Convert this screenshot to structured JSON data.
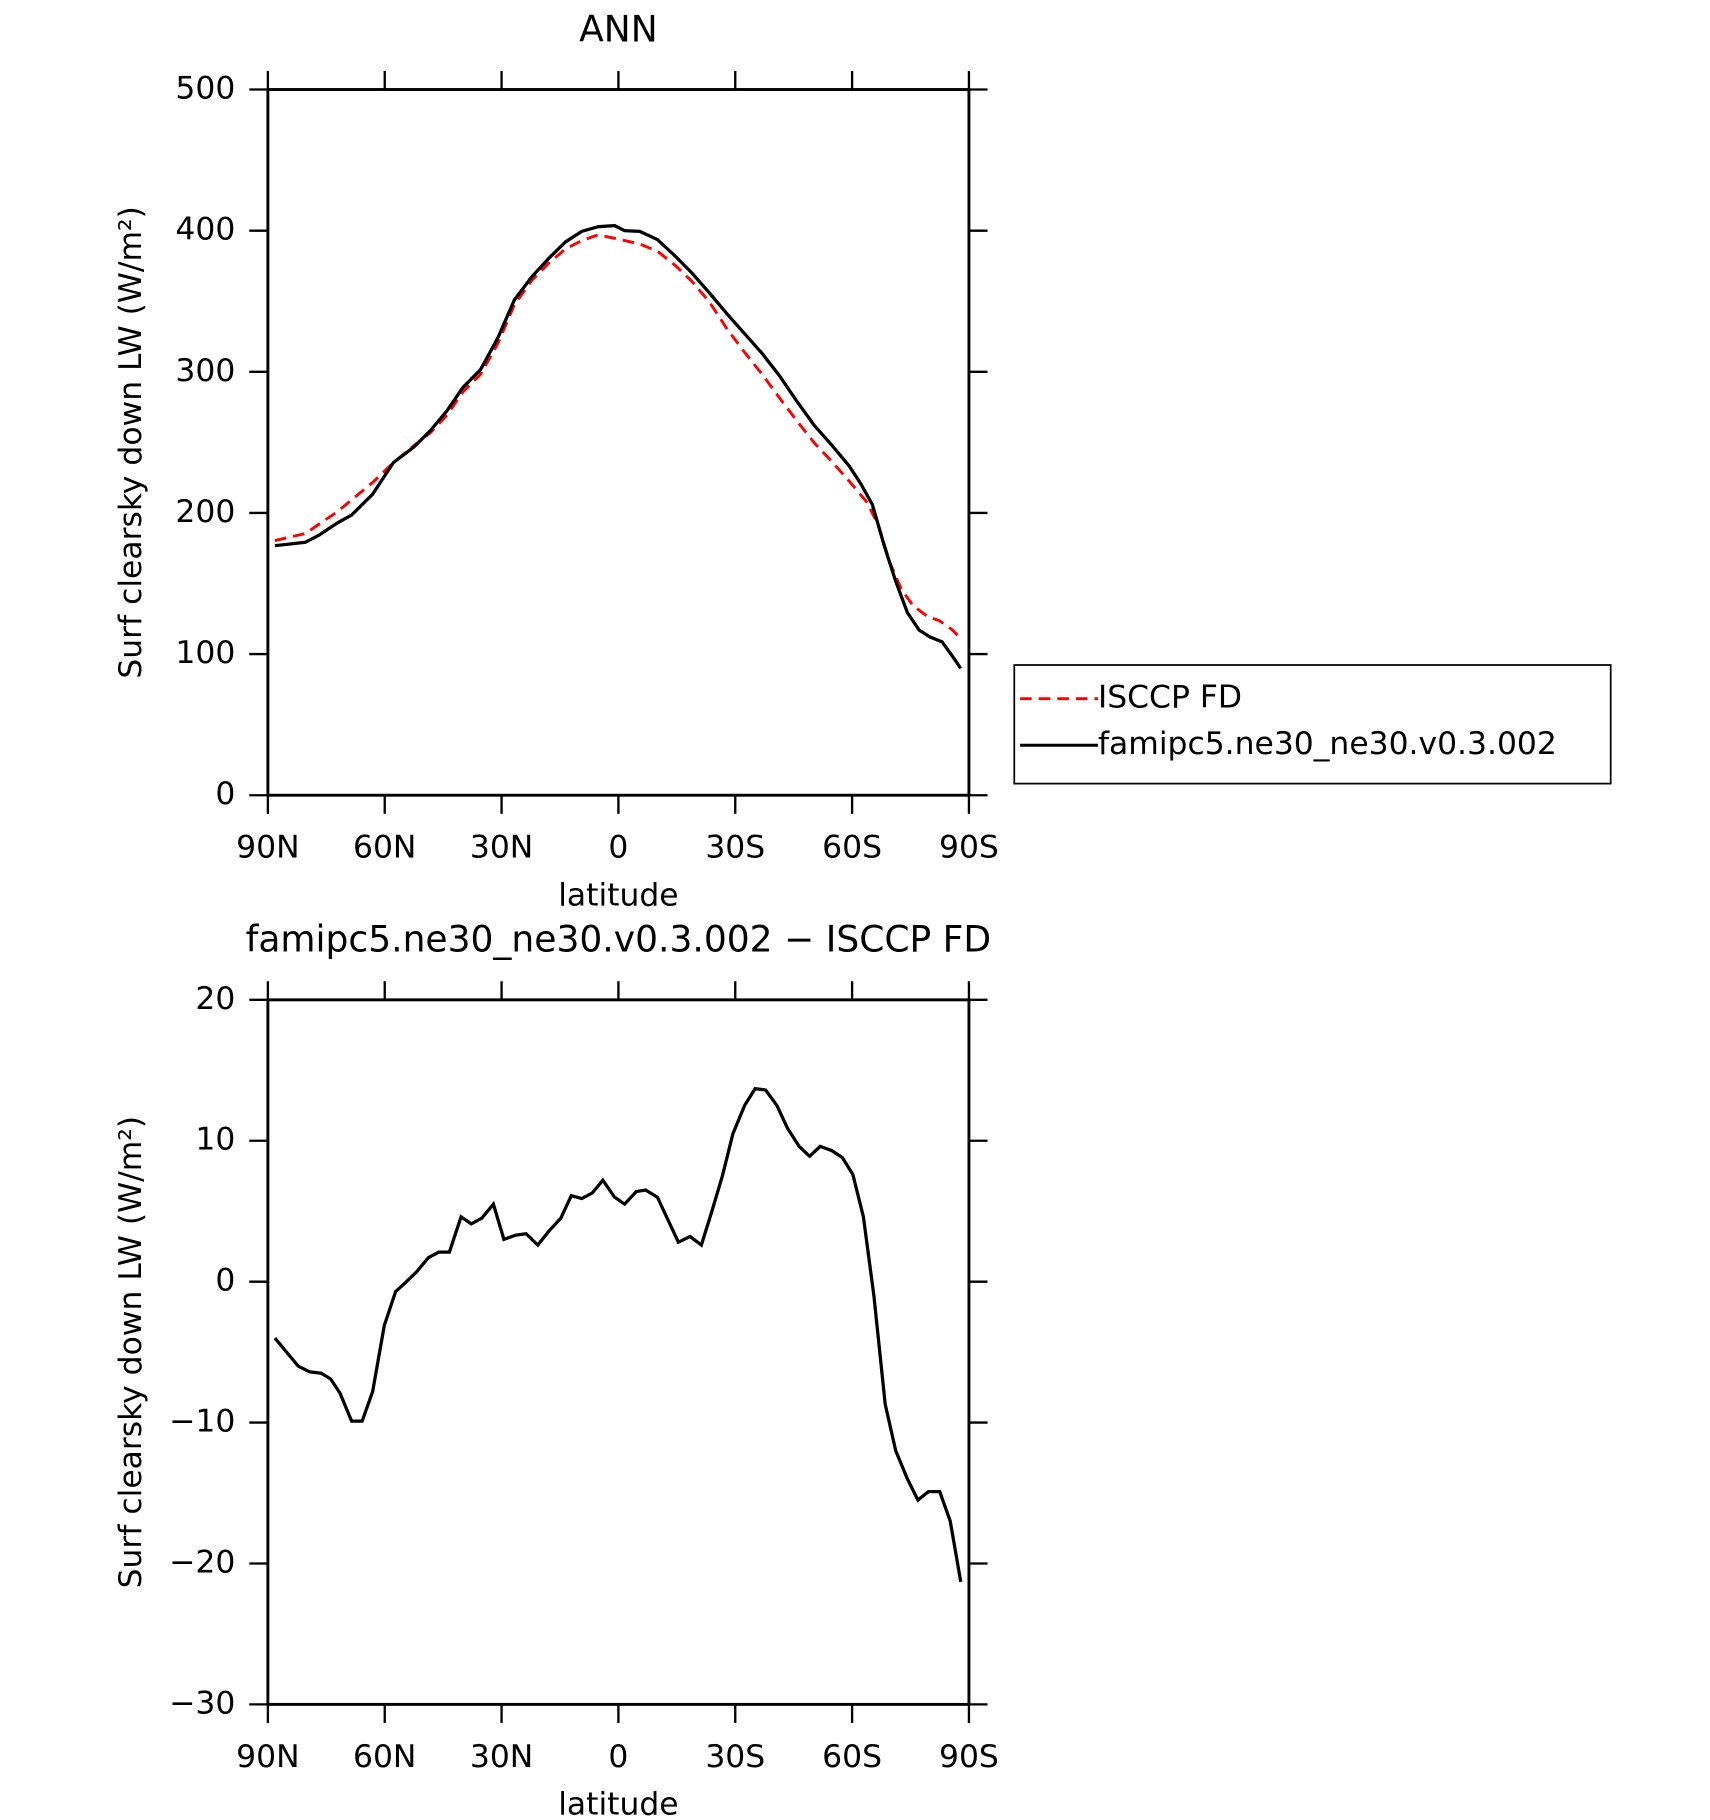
{
  "chart_data": [
    {
      "type": "line",
      "title": "ANN",
      "xlabel": "latitude",
      "ylabel": "Surf clearsky down LW (W/m²)",
      "xlim": [
        90,
        -90
      ],
      "xticks": [
        {
          "value": 90,
          "label": "90N"
        },
        {
          "value": 60,
          "label": "60N"
        },
        {
          "value": 30,
          "label": "30N"
        },
        0,
        {
          "value": -30,
          "label": "30S"
        },
        {
          "value": -60,
          "label": "60S"
        },
        {
          "value": -90,
          "label": "90S"
        }
      ],
      "ylim": [
        0,
        500
      ],
      "yticks": [
        0,
        100,
        200,
        300,
        400,
        500
      ],
      "legend": "right",
      "series": [
        {
          "name": "ISCCP FD",
          "color": "#ff0000",
          "dashed": true,
          "x": [
            88.2,
            80.4,
            72.1,
            63.1,
            57.8,
            52.4,
            48.2,
            44.0,
            39.9,
            35.4,
            30.9,
            26.7,
            22.2,
            17.8,
            13.6,
            9.4,
            5.2,
            1.0,
            -1.6,
            -5.5,
            -10.0,
            -14.5,
            -18.9,
            -23.4,
            -27.9,
            -32.4,
            -36.9,
            -41.3,
            -45.8,
            -50.3,
            -54.8,
            -59.3,
            -63.8,
            -66.8,
            -69.7,
            -72.7,
            -75.7,
            -79.3,
            -82.5,
            -85.5,
            -88.2
          ],
          "values": [
            180.4,
            185.4,
            201,
            221.6,
            235.6,
            248,
            257,
            269.4,
            285.8,
            298.2,
            320.4,
            347.6,
            364.9,
            377.2,
            387,
            393,
            397,
            394.6,
            393,
            390.5,
            385.5,
            375.6,
            364,
            349.3,
            330.3,
            313.8,
            298.2,
            281.7,
            265.3,
            249.6,
            236.4,
            222.4,
            207.6,
            191,
            164.7,
            145.7,
            134.2,
            126.8,
            123.5,
            117.7,
            110.3
          ]
        },
        {
          "name": "famipc5.ne30_ne30.v0.3.002",
          "color": "#000000",
          "dashed": false,
          "x": [
            88.2,
            80.4,
            76.9,
            72.1,
            68.5,
            63.1,
            57.8,
            52.4,
            48.2,
            44.0,
            39.9,
            35.4,
            30.9,
            26.7,
            22.2,
            17.8,
            13.6,
            9.4,
            5.2,
            1.0,
            -1.6,
            -5.5,
            -10.0,
            -14.5,
            -18.9,
            -23.4,
            -27.9,
            -32.4,
            -36.9,
            -41.3,
            -45.8,
            -50.3,
            -54.8,
            -59.3,
            -62.2,
            -65.2,
            -68.2,
            -71.2,
            -74.2,
            -77.2,
            -80.1,
            -83.1,
            -86.1,
            -87.9
          ],
          "values": [
            176.8,
            179.2,
            184.2,
            193,
            198.5,
            213.3,
            235.6,
            247,
            258.6,
            272.5,
            289,
            301.5,
            324.4,
            351,
            367.4,
            380.6,
            392,
            399.5,
            402.8,
            403.6,
            400,
            399.5,
            393.7,
            382.2,
            369.9,
            355.8,
            341,
            327,
            313,
            297.4,
            279.2,
            262,
            248,
            233.1,
            220.8,
            206,
            177.3,
            151.6,
            129.4,
            117,
            112,
            108.7,
            97.2,
            89.8
          ]
        }
      ]
    },
    {
      "type": "line",
      "title": "famipc5.ne30_ne30.v0.3.002 − ISCCP FD",
      "xlabel": "latitude",
      "ylabel": "Surf clearsky down LW (W/m²)",
      "xlim": [
        90,
        -90
      ],
      "xticks": [
        {
          "value": 90,
          "label": "90N"
        },
        {
          "value": 60,
          "label": "60N"
        },
        {
          "value": 30,
          "label": "30N"
        },
        0,
        {
          "value": -30,
          "label": "30S"
        },
        {
          "value": -60,
          "label": "60S"
        },
        {
          "value": -90,
          "label": "90S"
        }
      ],
      "ylim": [
        -30,
        20
      ],
      "yticks": [
        {
          "value": -30,
          "label": "−30"
        },
        {
          "value": -20,
          "label": "−20"
        },
        {
          "value": -10,
          "label": "−10"
        },
        0,
        10,
        20
      ],
      "series": [
        {
          "color": "#000000",
          "dashed": false,
          "x": [
            88.2,
            85.2,
            82.2,
            79.3,
            76.3,
            73.9,
            71.5,
            68.5,
            65.8,
            63.1,
            60.1,
            57.2,
            54.8,
            51.8,
            48.8,
            46.1,
            43.4,
            40.4,
            37.8,
            35.1,
            32.1,
            29.4,
            26.4,
            23.7,
            20.7,
            17.8,
            14.8,
            12.1,
            9.4,
            6.7,
            4.0,
            1.0,
            -1.6,
            -4.6,
            -7.0,
            -10.0,
            -12.7,
            -15.4,
            -18.4,
            -21.3,
            -24.0,
            -26.7,
            -29.4,
            -32.4,
            -35.1,
            -37.8,
            -40.7,
            -43.4,
            -46.4,
            -49.1,
            -51.8,
            -54.8,
            -57.5,
            -60.2,
            -62.9,
            -65.6,
            -68.5,
            -71.2,
            -74.2,
            -76.9,
            -79.6,
            -82.5,
            -85.2,
            -87.9
          ],
          "values": [
            -4.0,
            -5.0,
            -6.0,
            -6.4,
            -6.5,
            -6.9,
            -7.9,
            -9.9,
            -9.9,
            -7.8,
            -3.1,
            -0.7,
            -0.1,
            0.7,
            1.7,
            2.1,
            2.1,
            4.6,
            4.1,
            4.5,
            5.5,
            3.0,
            3.3,
            3.4,
            2.6,
            3.6,
            4.5,
            6.1,
            5.9,
            6.3,
            7.2,
            6.0,
            5.5,
            6.4,
            6.5,
            6.0,
            4.4,
            2.8,
            3.2,
            2.6,
            5.0,
            7.5,
            10.5,
            12.5,
            13.7,
            13.6,
            12.5,
            10.9,
            9.6,
            8.9,
            9.6,
            9.3,
            8.8,
            7.6,
            4.6,
            -1.0,
            -8.7,
            -12.0,
            -14.0,
            -15.5,
            -14.9,
            -14.9,
            -17.0,
            -21.3
          ]
        }
      ]
    }
  ]
}
